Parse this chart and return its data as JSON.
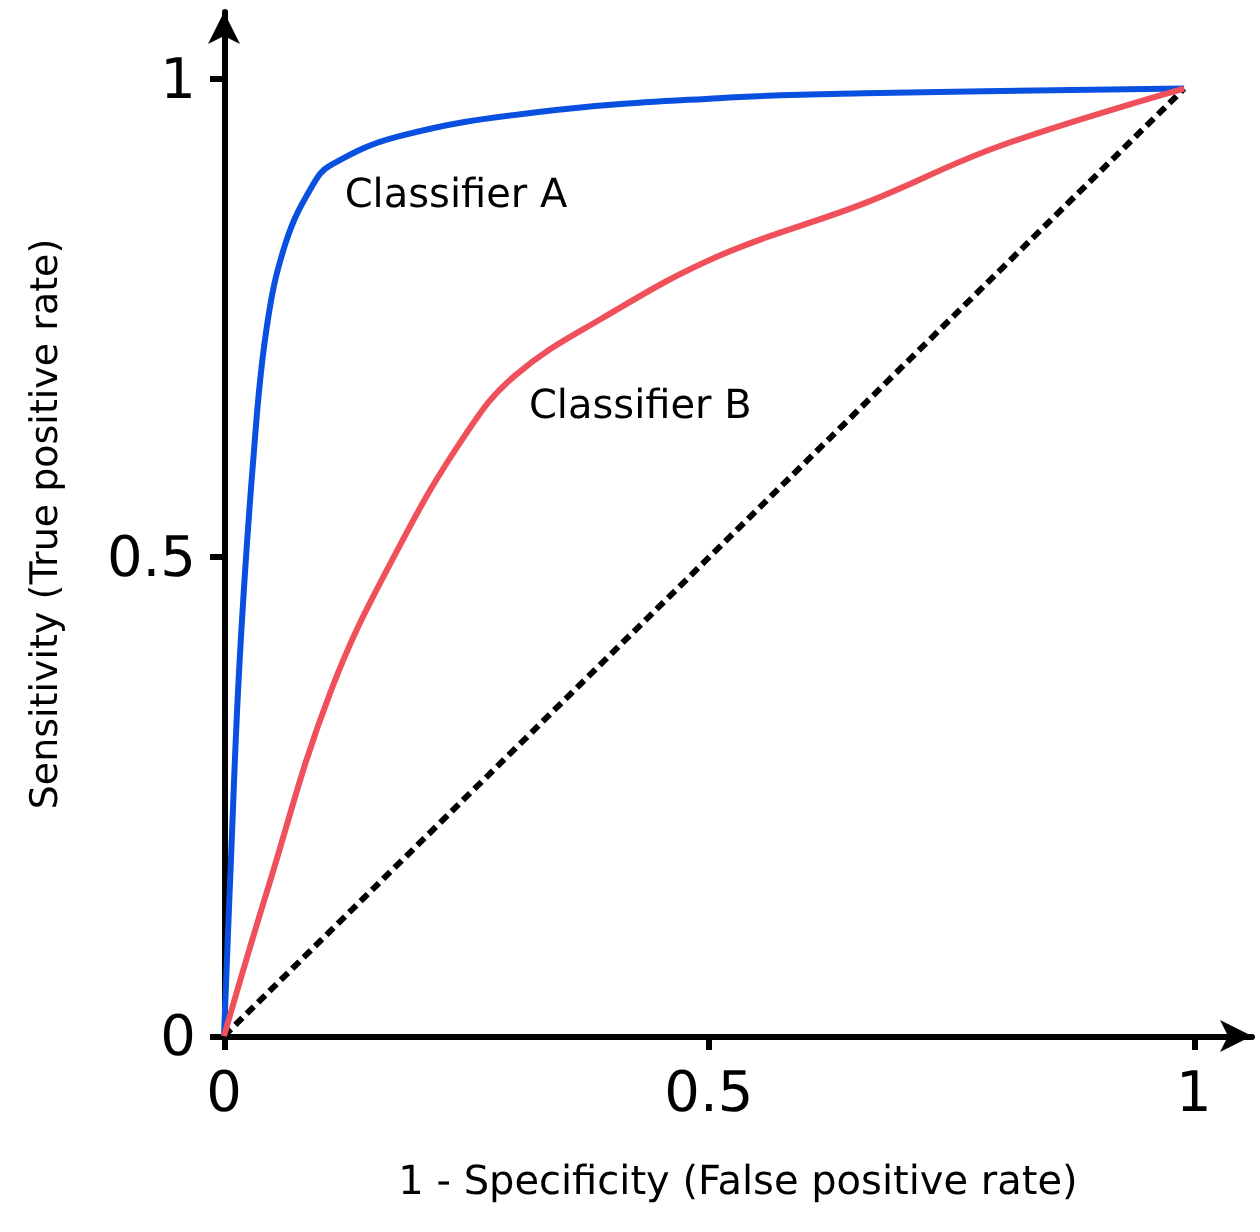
{
  "chart_data": {
    "type": "line",
    "xlabel": "1 - Specificity (False positive rate)",
    "ylabel": "Sensitivity (True positive rate)",
    "xlim": [
      0,
      1.06
    ],
    "ylim": [
      0,
      1.07
    ],
    "xticks": [
      0,
      0.5,
      1
    ],
    "yticks": [
      0,
      0.5,
      1
    ],
    "grid": false,
    "legend": false,
    "marker": "none",
    "series": [
      {
        "name": "Classifier A",
        "color": "#0a50e0",
        "line_style": "solid",
        "x": [
          0,
          0.007,
          0.016,
          0.03,
          0.044,
          0.064,
          0.092,
          0.11,
          0.18,
          0.32,
          0.51,
          0.66,
          0.99
        ],
        "values": [
          0,
          0.18,
          0.39,
          0.6,
          0.74,
          0.83,
          0.89,
          0.91,
          0.94,
          0.965,
          0.98,
          0.985,
          0.99
        ]
      },
      {
        "name": "Classifier B",
        "color": "#f0505a",
        "line_style": "solid",
        "x": [
          0,
          0.044,
          0.11,
          0.18,
          0.25,
          0.3,
          0.39,
          0.51,
          0.66,
          0.8,
          0.99
        ],
        "values": [
          0,
          0.15,
          0.36,
          0.51,
          0.63,
          0.69,
          0.75,
          0.815,
          0.87,
          0.93,
          0.99
        ]
      },
      {
        "color": "#000000",
        "line_style": "dashed",
        "x": [
          0,
          0.99
        ],
        "values": [
          0,
          0.99
        ]
      }
    ]
  }
}
